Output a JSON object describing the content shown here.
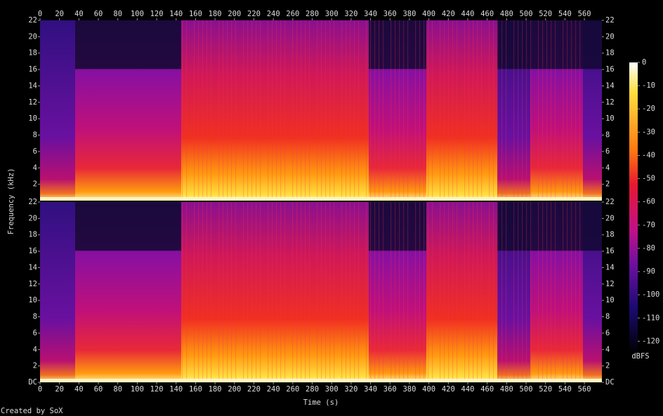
{
  "chart_data": {
    "type": "spectrogram",
    "xlabel": "Time (s)",
    "ylabel": "Frequency (kHz)",
    "credit": "Created by SoX",
    "xlim": [
      0,
      578
    ],
    "xticks": [
      0,
      20,
      40,
      60,
      80,
      100,
      120,
      140,
      160,
      180,
      200,
      220,
      240,
      260,
      280,
      300,
      320,
      340,
      360,
      380,
      400,
      420,
      440,
      460,
      480,
      500,
      520,
      540,
      560
    ],
    "ylim": [
      0,
      22
    ],
    "panels": [
      {
        "yticks": [
          2,
          4,
          6,
          8,
          10,
          12,
          14,
          16,
          18,
          20,
          22
        ]
      },
      {
        "yticks": [
          {
            "value": 0,
            "label": "DC"
          },
          2,
          4,
          6,
          8,
          10,
          12,
          14,
          16,
          18,
          20,
          22
        ]
      }
    ],
    "colorbar": {
      "label": "dBFS",
      "lim": [
        -125,
        0
      ],
      "ticks": [
        0,
        -10,
        -20,
        -30,
        -40,
        -50,
        -60,
        -70,
        -80,
        -90,
        -100,
        -110,
        -120
      ]
    }
  }
}
